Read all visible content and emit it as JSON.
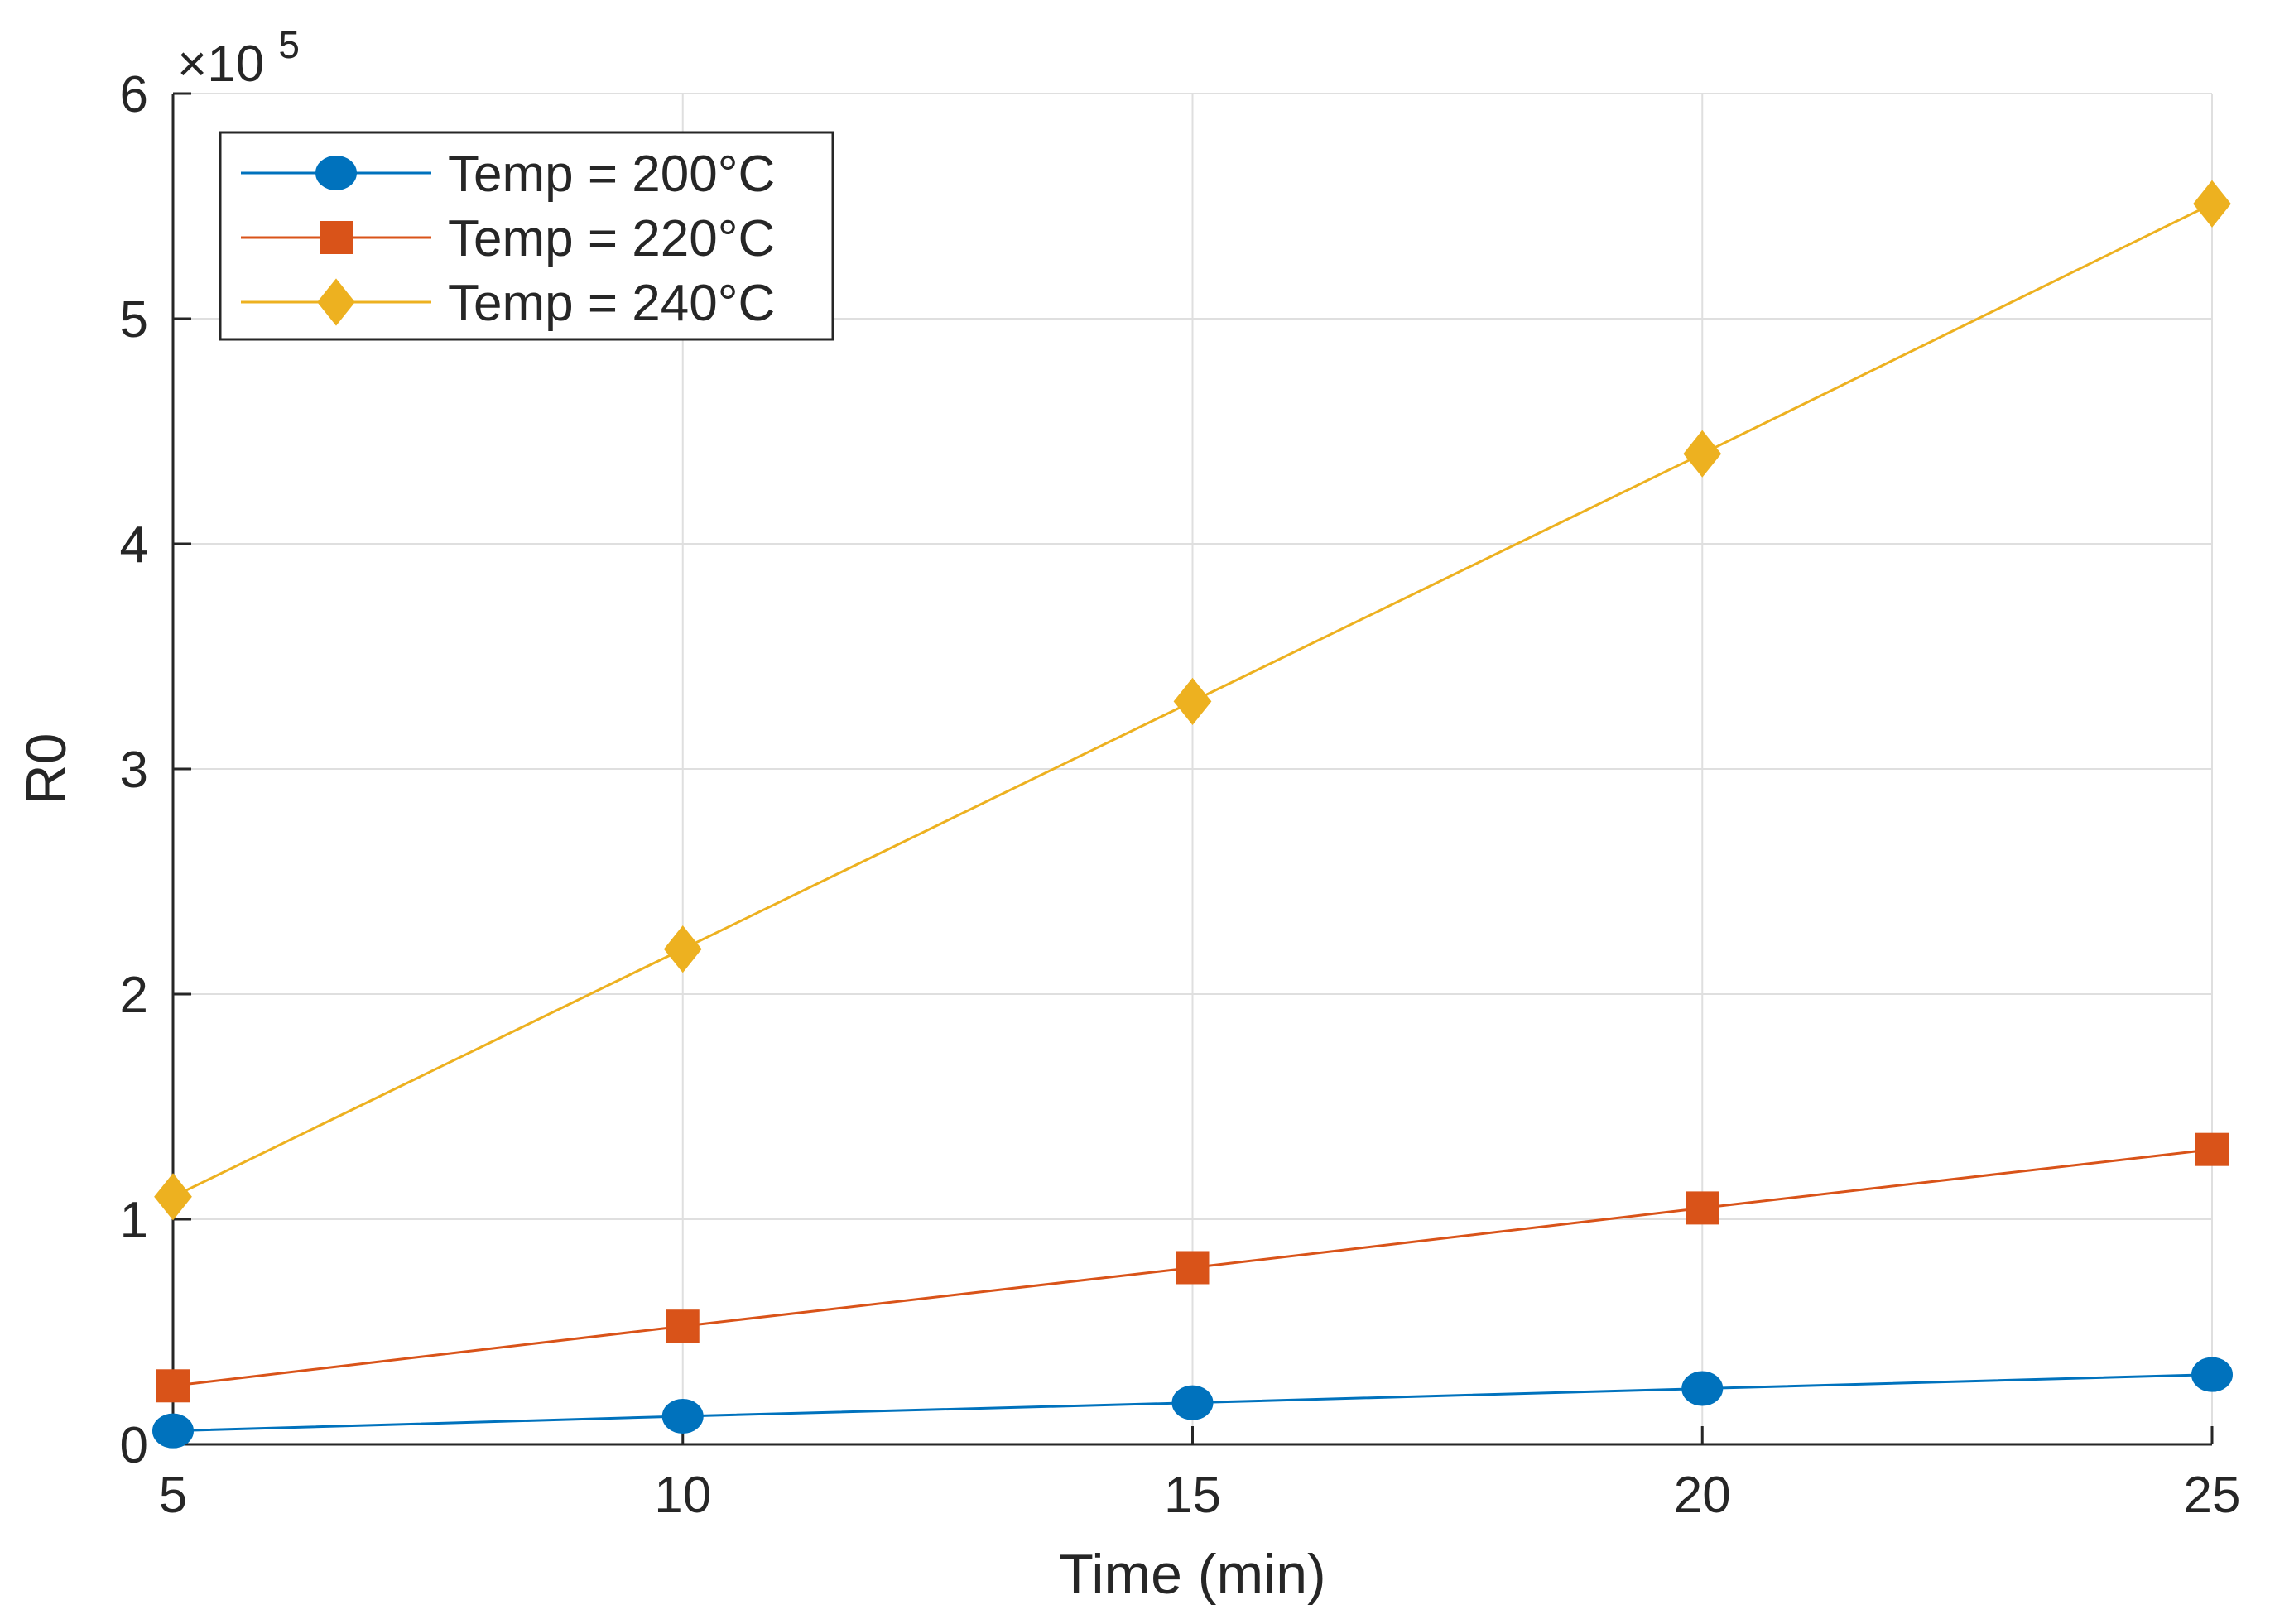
{
  "chart_data": {
    "type": "line",
    "title": "",
    "xlabel": "Time (min)",
    "ylabel": "R0",
    "x": [
      5,
      10,
      15,
      20,
      25
    ],
    "xlim": [
      5,
      25
    ],
    "ylim": [
      0,
      600000
    ],
    "xticks": [
      5,
      10,
      15,
      20,
      25
    ],
    "yticks": [
      0,
      100000,
      200000,
      300000,
      400000,
      500000,
      600000
    ],
    "ytick_labels": [
      "0",
      "1",
      "2",
      "3",
      "4",
      "5",
      "6"
    ],
    "y_exponent_label": {
      "prefix": "×10",
      "power": "5"
    },
    "grid": true,
    "legend_position": "top-left",
    "series": [
      {
        "name": "Temp = 200°C",
        "color": "#0072BD",
        "marker": "circle",
        "values": [
          6000,
          12500,
          18500,
          24800,
          31000
        ]
      },
      {
        "name": "Temp = 220°C",
        "color": "#D95319",
        "marker": "square",
        "values": [
          26000,
          52500,
          78500,
          105000,
          131000
        ]
      },
      {
        "name": "Temp = 240°C",
        "color": "#EDB120",
        "marker": "diamond",
        "values": [
          110000,
          220000,
          330000,
          440000,
          551000
        ]
      }
    ]
  }
}
